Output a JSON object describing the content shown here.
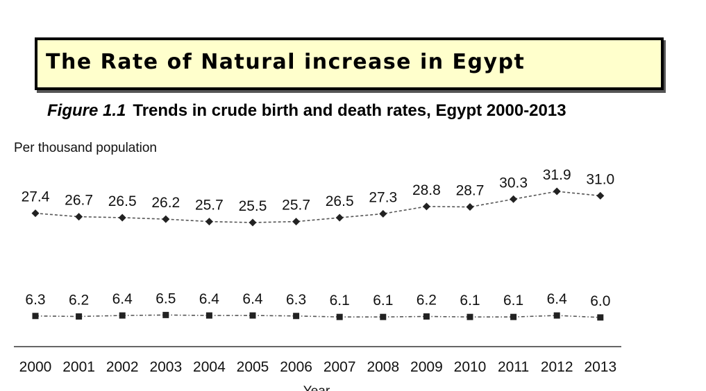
{
  "banner": {
    "title": "The Rate of Natural increase in Egypt"
  },
  "figure": {
    "label": "Figure 1.1",
    "title": "Trends in crude birth and death rates, Egypt 2000-2013"
  },
  "chart_data": {
    "type": "line",
    "x": [
      "2000",
      "2001",
      "2002",
      "2003",
      "2004",
      "2005",
      "2006",
      "2007",
      "2008",
      "2009",
      "2010",
      "2011",
      "2012",
      "2013"
    ],
    "ylabel": "Per thousand population",
    "xlabel": "Year",
    "ylim": [
      0,
      35
    ],
    "grid": false,
    "series": [
      {
        "values": [
          27.4,
          26.7,
          26.5,
          26.2,
          25.7,
          25.5,
          25.7,
          26.5,
          27.3,
          28.8,
          28.7,
          30.3,
          31.9,
          31.0
        ],
        "labels": [
          "27.4",
          "26.7",
          "26.5",
          "26.2",
          "25.7",
          "25.5",
          "25.7",
          "26.5",
          "27.3",
          "28.8",
          "28.7",
          "30.3",
          "31.9",
          "31.0"
        ],
        "marker": "diamond",
        "line_style": "dashed",
        "color": "#222222"
      },
      {
        "values": [
          6.3,
          6.2,
          6.4,
          6.5,
          6.4,
          6.4,
          6.3,
          6.1,
          6.1,
          6.2,
          6.1,
          6.1,
          6.4,
          6.0
        ],
        "labels": [
          "6.3",
          "6.2",
          "6.4",
          "6.5",
          "6.4",
          "6.4",
          "6.3",
          "6.1",
          "6.1",
          "6.2",
          "6.1",
          "6.1",
          "6.4",
          "6.0"
        ],
        "marker": "square",
        "line_style": "dash-dot",
        "color": "#222222"
      }
    ]
  }
}
